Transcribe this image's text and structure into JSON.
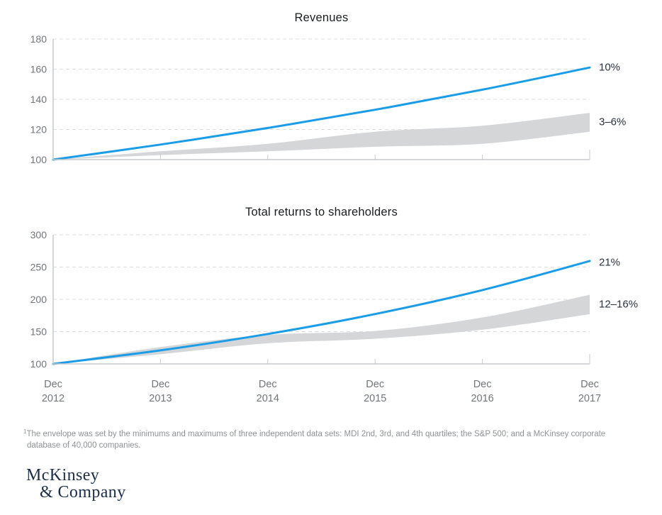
{
  "chart_data": [
    {
      "type": "line",
      "title": "Revenues",
      "y_ticks": [
        180,
        160,
        140,
        120,
        100
      ],
      "ylim": [
        100,
        180
      ],
      "categories": [
        "Dec 2012",
        "Dec 2013",
        "Dec 2014",
        "Dec 2015",
        "Dec 2016",
        "Dec 2017"
      ],
      "show_x_labels": false,
      "grid": "dashed-horizontal",
      "legend": "none",
      "line": {
        "name": "10% compound annual growth line",
        "label": "10%",
        "color": "#1a9ce6",
        "values": [
          100,
          110,
          121,
          133.1,
          146.4,
          161.1
        ]
      },
      "band": {
        "name": "envelope of three independent data sets",
        "label": "3–6%",
        "color": "#d4d6d8",
        "top": [
          100,
          105.5,
          110.5,
          118.5,
          122.5,
          131
        ],
        "bottom": [
          100,
          103,
          105.5,
          108.5,
          110.5,
          118.5
        ]
      }
    },
    {
      "type": "line",
      "title": "Total returns to shareholders",
      "y_ticks": [
        300,
        250,
        200,
        150,
        100
      ],
      "ylim": [
        100,
        300
      ],
      "categories": [
        "Dec 2012",
        "Dec 2013",
        "Dec 2014",
        "Dec 2015",
        "Dec 2016",
        "Dec 2017"
      ],
      "show_x_labels": true,
      "grid": "dashed-horizontal",
      "legend": "none",
      "line": {
        "name": "21% compound annual growth line",
        "label": "21%",
        "color": "#1a9ce6",
        "values": [
          100,
          121,
          146.4,
          177.2,
          214.4,
          259.4
        ]
      },
      "band": {
        "name": "envelope of three independent data sets",
        "label": "12–16%",
        "color": "#d4d6d8",
        "top": [
          100,
          126,
          145,
          151,
          172,
          207
        ],
        "bottom": [
          100,
          115,
          132,
          139,
          153,
          177
        ]
      }
    }
  ],
  "footnote": {
    "sup": "1",
    "line1": "The envelope was set by the minimums and maximums of three independent data sets: MDI 2nd, 3rd, and 4th quartiles; the S&P 500; and a McKinsey corporate",
    "line2": "database of 40,000 companies."
  },
  "logo": {
    "line1": "McKinsey",
    "line2": "& Company"
  },
  "colors": {
    "accent_blue": "#1a9ce6",
    "band_gray": "#d4d6d8",
    "gridline": "#dcddde",
    "axis": "#c7c9cb",
    "tick_text": "#71757a",
    "title_text": "#1a1d1f",
    "annotation_text": "#2a323d",
    "footnote_text": "#8f9295",
    "logo_navy": "#1c2e47"
  }
}
